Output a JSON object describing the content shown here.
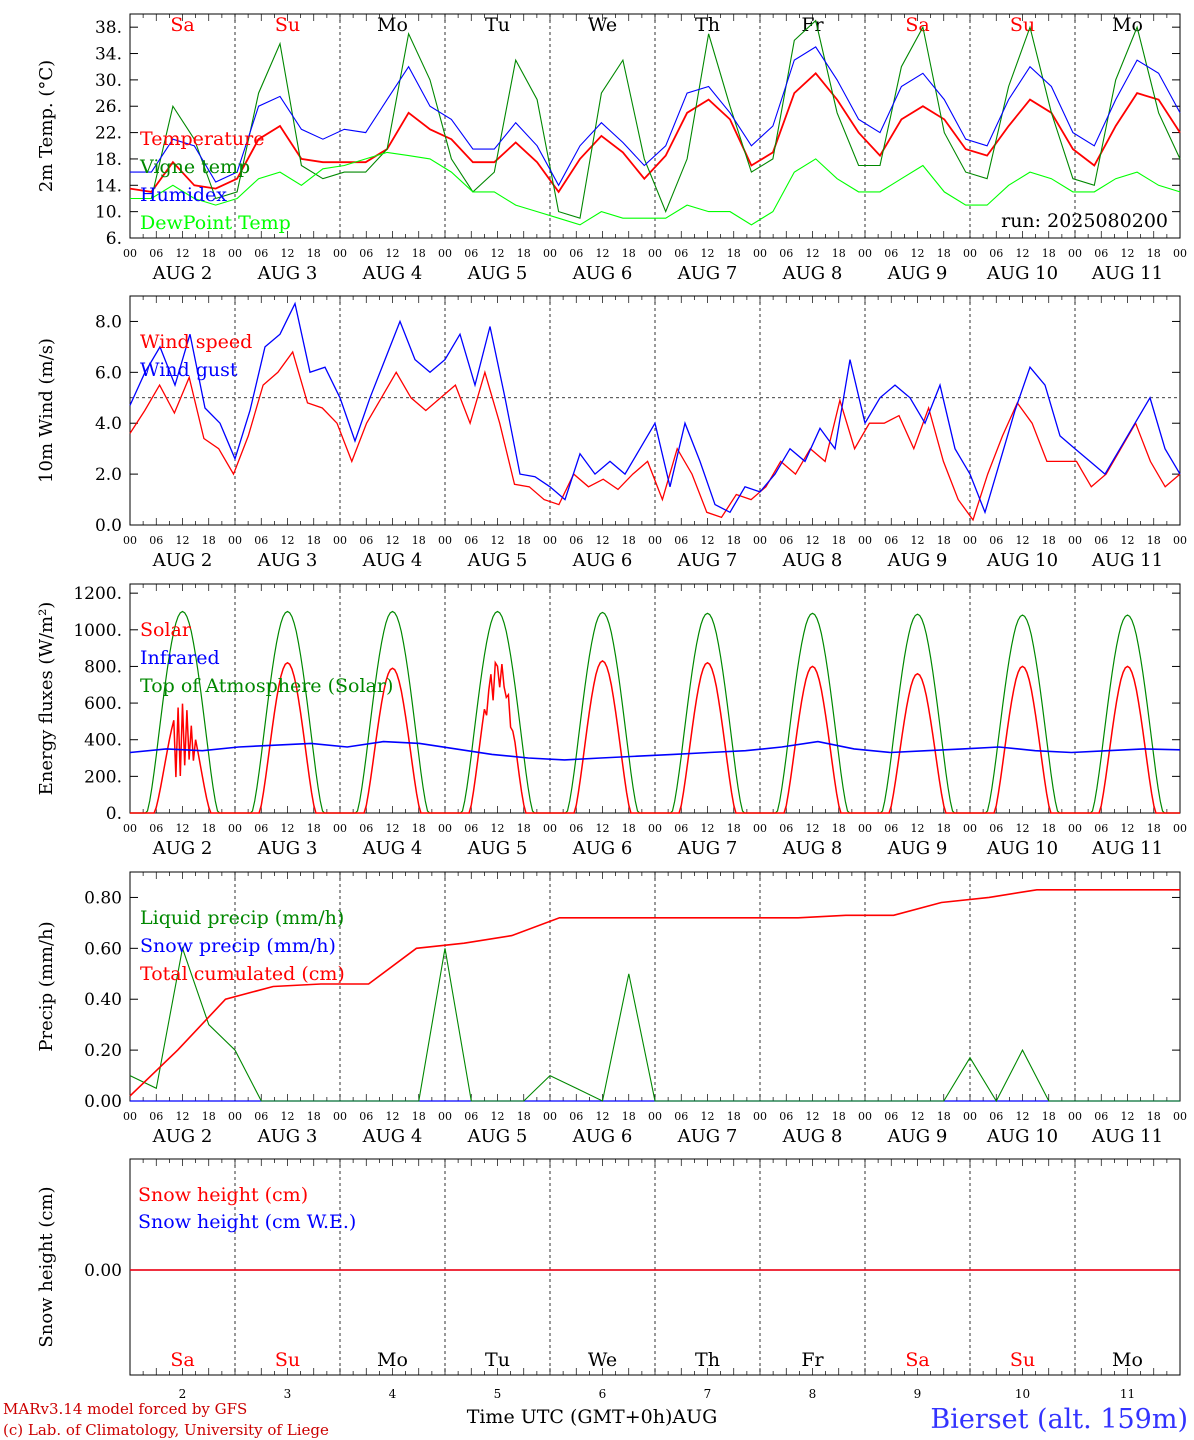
{
  "colors": {
    "red": "#ff0000",
    "green": "#008800",
    "blue": "#0000ff",
    "lightgreen": "#00ff00",
    "axis": "#000000",
    "credit": "#cc0000",
    "station": "#3333ff"
  },
  "days": {
    "names_top": [
      "Sa",
      "Su",
      "Mo",
      "Tu",
      "We",
      "Th",
      "Fr",
      "Sa",
      "Su",
      "Mo"
    ],
    "name_colors": [
      "red",
      "red",
      "black",
      "black",
      "black",
      "black",
      "black",
      "red",
      "red",
      "black"
    ],
    "date_labels": [
      "AUG  2",
      "AUG  3",
      "AUG  4",
      "AUG  5",
      "AUG  6",
      "AUG  7",
      "AUG  8",
      "AUG  9",
      "AUG 10",
      "AUG 11"
    ],
    "day_numbers": [
      "2",
      "3",
      "4",
      "5",
      "6",
      "7",
      "8",
      "9",
      "10",
      "11"
    ],
    "hour_ticks": [
      "00",
      "06",
      "12",
      "18"
    ],
    "hour_end": "00"
  },
  "footer": {
    "credit_line1": "MARv3.14 model forced by GFS",
    "credit_line2": "(c) Lab. of Climatology, University of Liege",
    "xlabel": "Time UTC (GMT+0h)AUG",
    "station": "Bierset (alt. 159m)"
  },
  "chart_data": [
    {
      "type": "line",
      "ylabel": "2m Temp. (°C)",
      "ylim": [
        6,
        40
      ],
      "yticks": [
        "6.",
        "10.",
        "14.",
        "18.",
        "22.",
        "26.",
        "30.",
        "34.",
        "38."
      ],
      "annotation": "run: 2025080200",
      "grid": "dashed vertical at 00 UTC",
      "legend_position": "left",
      "series": [
        {
          "name": "Temperature",
          "color": "red",
          "values": [
            13.5,
            13,
            17.5,
            14,
            13.5,
            15,
            21,
            23,
            18,
            17.5,
            17.5,
            17.5,
            19.5,
            25,
            22.5,
            21,
            17.5,
            17.5,
            20.5,
            17.5,
            13,
            18,
            21.5,
            19,
            15,
            18.5,
            25,
            27,
            24,
            17,
            19,
            28,
            31,
            27,
            22,
            18.5,
            24,
            26,
            24,
            19.5,
            18.5,
            23,
            27,
            25,
            19.5,
            17,
            23,
            28,
            27,
            22
          ]
        },
        {
          "name": "Vigne temp",
          "color": "green",
          "values": [
            12,
            12,
            26,
            21,
            12,
            13,
            28,
            35.5,
            17,
            15,
            16,
            16,
            19.5,
            37,
            30,
            18,
            13,
            16,
            33,
            27,
            10,
            9,
            28,
            33,
            18,
            10,
            18,
            37,
            26,
            16,
            18,
            36,
            39,
            25,
            17,
            17,
            32,
            38,
            22,
            16,
            15,
            29,
            38,
            25,
            15,
            14,
            30,
            38,
            25,
            18
          ]
        },
        {
          "name": "Humidex",
          "color": "blue",
          "values": [
            16,
            16,
            21,
            20,
            14.5,
            16,
            26,
            27.5,
            22.5,
            21,
            22.5,
            22,
            27,
            32,
            26,
            24,
            19.5,
            19.5,
            23.5,
            20,
            14,
            20,
            23.5,
            20.5,
            17,
            20,
            28,
            29,
            25,
            20,
            23,
            33,
            35,
            30,
            24,
            22,
            29,
            31,
            27,
            21,
            20,
            27,
            32,
            29,
            22,
            20,
            27,
            33,
            31,
            25
          ]
        },
        {
          "name": "DewPoint Temp",
          "color": "lightgreen",
          "values": [
            12,
            12,
            14,
            12,
            11,
            12,
            15,
            16,
            14,
            16.5,
            17,
            18,
            19,
            18.5,
            18,
            16,
            13,
            13,
            11,
            10,
            9,
            8,
            10,
            9,
            9,
            9,
            11,
            10,
            10,
            8,
            10,
            16,
            18,
            15,
            13,
            13,
            15,
            17,
            13,
            11,
            11,
            14,
            16,
            15,
            13,
            13,
            15,
            16,
            14,
            13
          ]
        }
      ]
    },
    {
      "type": "line",
      "ylabel": "10m Wind (m/s)",
      "ylim": [
        0,
        9
      ],
      "yticks": [
        "0.0",
        "2.0",
        "4.0",
        "6.0",
        "8.0"
      ],
      "reference_line": 5,
      "grid": "dashed vertical at 00 UTC",
      "legend_position": "left",
      "series": [
        {
          "name": "Wind speed",
          "color": "red",
          "values": [
            3.6,
            4.5,
            5.5,
            4.4,
            5.8,
            3.4,
            3,
            2,
            3.5,
            5.5,
            6,
            6.8,
            4.8,
            4.6,
            4,
            2.5,
            4,
            5,
            6,
            5,
            4.5,
            5,
            5.5,
            4,
            6,
            4,
            1.6,
            1.5,
            1,
            0.8,
            2,
            1.5,
            1.8,
            1.4,
            2,
            2.5,
            1,
            3,
            2,
            0.5,
            0.3,
            1.2,
            1,
            1.5,
            2.5,
            2,
            3,
            2.5,
            4.9,
            3,
            4,
            4,
            4.3,
            3,
            4.6,
            2.5,
            1,
            0.2,
            2,
            3.5,
            4.8,
            4,
            2.5,
            2.5,
            2.5,
            1.5,
            2,
            3,
            4,
            2.5,
            1.5,
            2
          ]
        },
        {
          "name": "Wind gust",
          "color": "blue",
          "values": [
            4.7,
            6,
            7,
            5.5,
            7.5,
            4.6,
            4,
            2.6,
            4.5,
            7,
            7.5,
            8.7,
            6,
            6.2,
            5,
            3.3,
            5,
            6.5,
            8,
            6.5,
            6,
            6.5,
            7.5,
            5.5,
            7.8,
            5,
            2,
            1.9,
            1.5,
            1,
            2.8,
            2,
            2.5,
            2,
            3,
            4,
            1.5,
            4,
            2.5,
            0.8,
            0.5,
            1.5,
            1.3,
            2,
            3,
            2.5,
            3.8,
            3,
            6.5,
            4,
            5,
            5.5,
            5,
            4,
            5.5,
            3,
            2,
            0.5,
            2.5,
            4.5,
            6.2,
            5.5,
            3.5,
            3,
            2.5,
            2,
            3,
            4,
            5,
            3,
            2
          ]
        }
      ]
    },
    {
      "type": "line",
      "ylabel": "Energy fluxes (W/m²)",
      "ylim": [
        0,
        1250
      ],
      "yticks": [
        "0.",
        "200.",
        "400.",
        "600.",
        "800.",
        "1000.",
        "1200."
      ],
      "grid": "dashed vertical at 00 UTC",
      "legend_position": "left",
      "series": [
        {
          "name": "Solar",
          "color": "red",
          "peaks": [
            600,
            820,
            790,
            850,
            830,
            820,
            800,
            760,
            800,
            800
          ]
        },
        {
          "name": "Infrared",
          "color": "blue",
          "values": [
            330,
            350,
            340,
            360,
            370,
            380,
            360,
            390,
            380,
            350,
            320,
            300,
            290,
            300,
            310,
            320,
            330,
            340,
            360,
            390,
            350,
            330,
            340,
            350,
            360,
            340,
            330,
            340,
            350,
            345
          ]
        },
        {
          "name": "Top of Atmosphere (Solar)",
          "color": "green",
          "peaks": [
            1100,
            1100,
            1100,
            1100,
            1095,
            1090,
            1090,
            1085,
            1080,
            1080
          ]
        }
      ]
    },
    {
      "type": "line",
      "ylabel": "Precip (mm/h)",
      "ylim": [
        0,
        0.9
      ],
      "yticks": [
        "0.00",
        "0.20",
        "0.40",
        "0.60",
        "0.80"
      ],
      "grid": "dashed vertical at 00 UTC",
      "legend_position": "left",
      "series": [
        {
          "name": "Liquid precip (mm/h)",
          "color": "green",
          "values": [
            0.1,
            0.05,
            0.6,
            0.3,
            0.2,
            0,
            0,
            0,
            0,
            0,
            0,
            0,
            0.6,
            0,
            0,
            0,
            0.1,
            0.05,
            0,
            0.5,
            0,
            0,
            0,
            0,
            0,
            0,
            0,
            0,
            0,
            0,
            0,
            0,
            0.17,
            0,
            0.2,
            0,
            0,
            0,
            0,
            0,
            0
          ]
        },
        {
          "name": "Snow precip (mm/h)",
          "color": "blue",
          "values": [
            0,
            0,
            0,
            0,
            0,
            0,
            0,
            0,
            0,
            0
          ]
        },
        {
          "name": "Total cumulated (cm)",
          "color": "red",
          "values": [
            0.02,
            0.2,
            0.4,
            0.45,
            0.46,
            0.46,
            0.6,
            0.62,
            0.65,
            0.72,
            0.72,
            0.72,
            0.72,
            0.72,
            0.72,
            0.73,
            0.73,
            0.78,
            0.8,
            0.83,
            0.83,
            0.83,
            0.83
          ]
        }
      ]
    },
    {
      "type": "line",
      "ylabel": "Snow height (cm)",
      "yticks": [
        "0.00"
      ],
      "grid": "dashed vertical at 00 UTC",
      "legend_position": "left",
      "series": [
        {
          "name": "Snow height (cm)",
          "color": "red",
          "values": [
            0,
            0
          ]
        },
        {
          "name": "Snow height (cm W.E.)",
          "color": "blue",
          "values": [
            0,
            0
          ]
        }
      ]
    }
  ]
}
